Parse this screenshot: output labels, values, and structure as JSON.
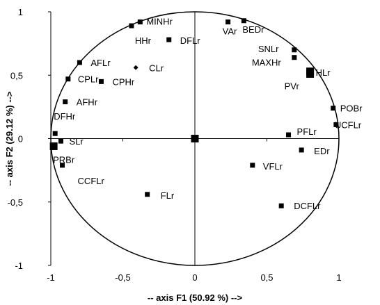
{
  "chart_data": {
    "type": "scatter",
    "xlabel": "-- axis F1 (50.92 %) -->",
    "ylabel": "-- axis F2 (29.12 %) -->",
    "xlim": [
      -1,
      1
    ],
    "ylim": [
      -1,
      1
    ],
    "xticks": [
      "-1",
      "-0,5",
      "0",
      "0,5",
      "1"
    ],
    "yticks": [
      "-1",
      "-0,5",
      "0",
      "0,5",
      "1"
    ],
    "grid": false,
    "correlation_circle": true,
    "series": [
      {
        "points": [
          {
            "label": "MINHr",
            "x": -0.38,
            "y": 0.92,
            "marker": "square"
          },
          {
            "label": "HHr",
            "x": -0.44,
            "y": 0.89,
            "marker": "square"
          },
          {
            "label": "DFLr",
            "x": -0.18,
            "y": 0.78,
            "marker": "square"
          },
          {
            "label": "VAr",
            "x": 0.23,
            "y": 0.92,
            "marker": "square"
          },
          {
            "label": "BEDr",
            "x": 0.34,
            "y": 0.93,
            "marker": "square"
          },
          {
            "label": "SNLr",
            "x": 0.69,
            "y": 0.7,
            "marker": "square"
          },
          {
            "label": "MAXHr",
            "x": 0.69,
            "y": 0.64,
            "marker": "square"
          },
          {
            "label": "HLr",
            "x": 0.8,
            "y": 0.53,
            "marker": "square-large"
          },
          {
            "label": "PVr",
            "x": 0.8,
            "y": 0.51,
            "marker": "square-large"
          },
          {
            "label": "AFLr",
            "x": -0.8,
            "y": 0.6,
            "marker": "square"
          },
          {
            "label": "CPLr",
            "x": -0.88,
            "y": 0.47,
            "marker": "square"
          },
          {
            "label": "CPHr",
            "x": -0.65,
            "y": 0.45,
            "marker": "square"
          },
          {
            "label": "CLr",
            "x": -0.41,
            "y": 0.56,
            "marker": "diamond"
          },
          {
            "label": "AFHr",
            "x": -0.9,
            "y": 0.29,
            "marker": "square"
          },
          {
            "label": "DFHr",
            "x": -0.97,
            "y": 0.04,
            "marker": "square"
          },
          {
            "label": "POBr",
            "x": 0.96,
            "y": 0.24,
            "marker": "square"
          },
          {
            "label": "UCFLr",
            "x": 0.98,
            "y": 0.11,
            "marker": "square"
          },
          {
            "label": "PFLr",
            "x": 0.65,
            "y": 0.03,
            "marker": "square"
          },
          {
            "label": "SLr",
            "x": -0.93,
            "y": -0.02,
            "marker": "square"
          },
          {
            "label": "PRBr",
            "x": -0.98,
            "y": -0.06,
            "marker": "square-large"
          },
          {
            "label": "EDr",
            "x": 0.74,
            "y": -0.09,
            "marker": "square"
          },
          {
            "label": "CCFLr",
            "x": -0.92,
            "y": -0.21,
            "marker": "square"
          },
          {
            "label": "VFLr",
            "x": 0.4,
            "y": -0.21,
            "marker": "square"
          },
          {
            "label": "FLr",
            "x": -0.33,
            "y": -0.44,
            "marker": "square"
          },
          {
            "label": "DCFLr",
            "x": 0.6,
            "y": -0.53,
            "marker": "square"
          },
          {
            "label": "",
            "x": 0.0,
            "y": 0.0,
            "marker": "square-large"
          }
        ]
      }
    ]
  }
}
